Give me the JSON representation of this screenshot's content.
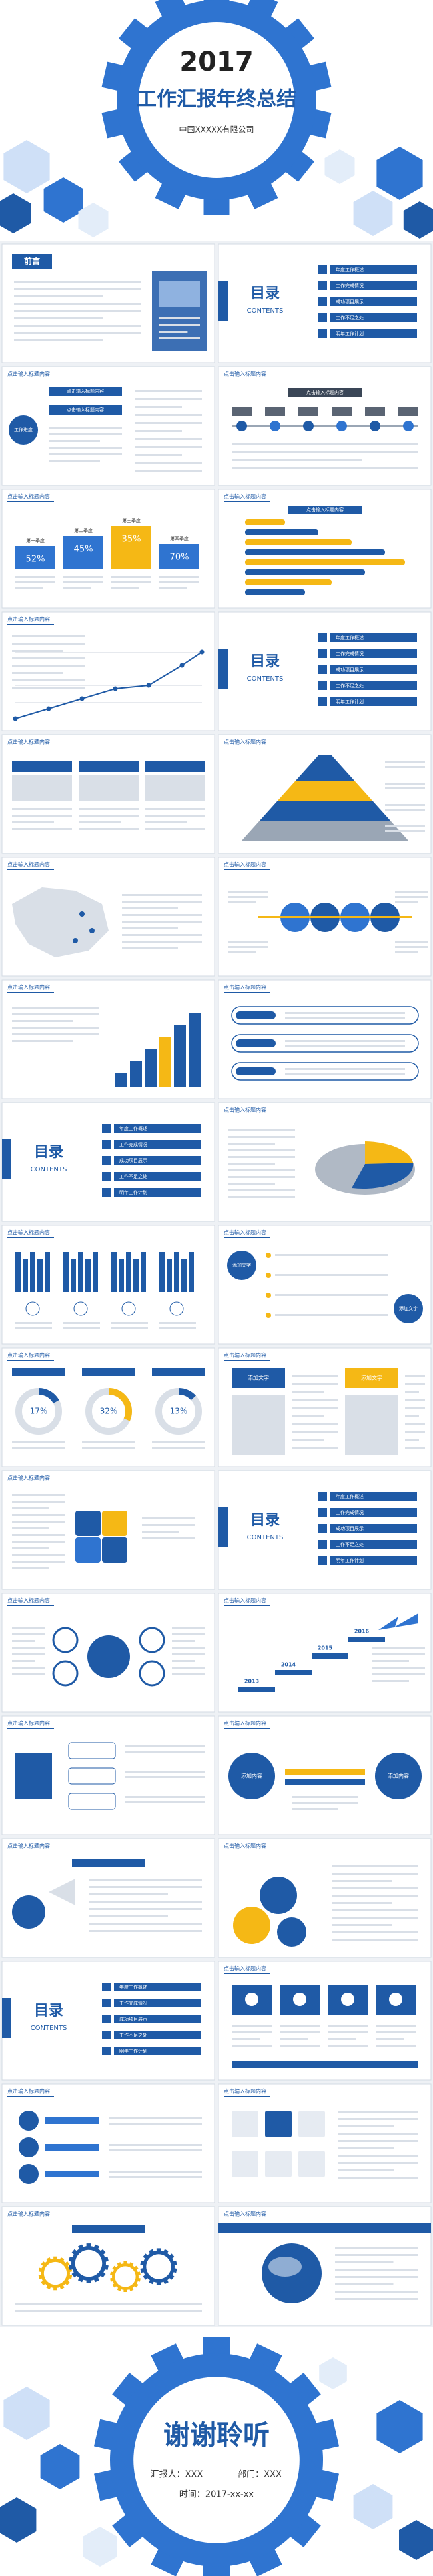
{
  "cover": {
    "year": "2017",
    "title": "工作汇报年终总结",
    "company": "中国XXXXX有限公司"
  },
  "slides": [
    {
      "title": "前言"
    },
    {
      "title": "目录",
      "subtitle": "CONTENTS",
      "items": [
        "年度工作概述",
        "工作完成情况",
        "成功项目展示",
        "工作不足之处",
        "明年工作计划"
      ]
    },
    {
      "title": "点击输入标题内容",
      "labels": [
        "点击输入标题内容",
        "点击输入标题内容",
        "工作进度"
      ]
    },
    {
      "title": "点击输入标题内容",
      "labels": [
        "点击输入标题内容"
      ]
    },
    {
      "title": "点击输入标题内容",
      "labels": [
        "52%",
        "45%",
        "35%",
        "70%"
      ],
      "captions": [
        "第一季度",
        "第二季度",
        "第三季度",
        "第四季度"
      ]
    },
    {
      "title": "点击输入标题内容",
      "labels": [
        "点击输入标题内容"
      ]
    },
    {
      "title": "点击输入标题内容"
    },
    {
      "title": "目录",
      "subtitle": "CONTENTS",
      "items": [
        "年度工作概述",
        "工作完成情况",
        "成功项目展示",
        "工作不足之处",
        "明年工作计划"
      ]
    },
    {
      "title": "点击输入标题内容"
    },
    {
      "title": "点击输入标题内容"
    },
    {
      "title": "点击输入标题内容"
    },
    {
      "title": "点击输入标题内容"
    },
    {
      "title": "点击输入标题内容"
    },
    {
      "title": "点击输入标题内容"
    },
    {
      "title": "目录",
      "subtitle": "CONTENTS",
      "items": [
        "年度工作概述",
        "工作完成情况",
        "成功项目展示",
        "工作不足之处",
        "明年工作计划"
      ]
    },
    {
      "title": "点击输入标题内容"
    },
    {
      "title": "点击输入标题内容"
    },
    {
      "title": "点击输入标题内容",
      "labels": [
        "添加文字",
        "添加文字"
      ]
    },
    {
      "title": "点击输入标题内容",
      "labels": [
        "17%",
        "32%",
        "13%"
      ]
    },
    {
      "title": "点击输入标题内容",
      "labels": [
        "添加文字",
        "添加文字"
      ]
    },
    {
      "title": "点击输入标题内容"
    },
    {
      "title": "目录",
      "subtitle": "CONTENTS",
      "items": [
        "年度工作概述",
        "工作完成情况",
        "成功项目展示",
        "工作不足之处",
        "明年工作计划"
      ]
    },
    {
      "title": "点击输入标题内容"
    },
    {
      "title": "点击输入标题内容",
      "labels": [
        "2013",
        "2014",
        "2015",
        "2016"
      ]
    },
    {
      "title": "点击输入标题内容"
    },
    {
      "title": "点击输入标题内容",
      "labels": [
        "添加内容",
        "添加内容"
      ]
    },
    {
      "title": "点击输入标题内容"
    },
    {
      "title": "点击输入标题内容"
    },
    {
      "title": "目录",
      "subtitle": "CONTENTS",
      "items": [
        "年度工作概述",
        "工作完成情况",
        "成功项目展示",
        "工作不足之处",
        "明年工作计划"
      ]
    },
    {
      "title": "点击输入标题内容"
    },
    {
      "title": "点击输入标题内容"
    },
    {
      "title": "点击输入标题内容"
    },
    {
      "title": "点击输入标题内容"
    },
    {
      "title": "点击输入标题内容"
    }
  ],
  "ending": {
    "title": "谢谢聆听",
    "reporter": "汇报人：XXX",
    "department": "部门：XXX",
    "time": "时间：2017-xx-xx"
  }
}
